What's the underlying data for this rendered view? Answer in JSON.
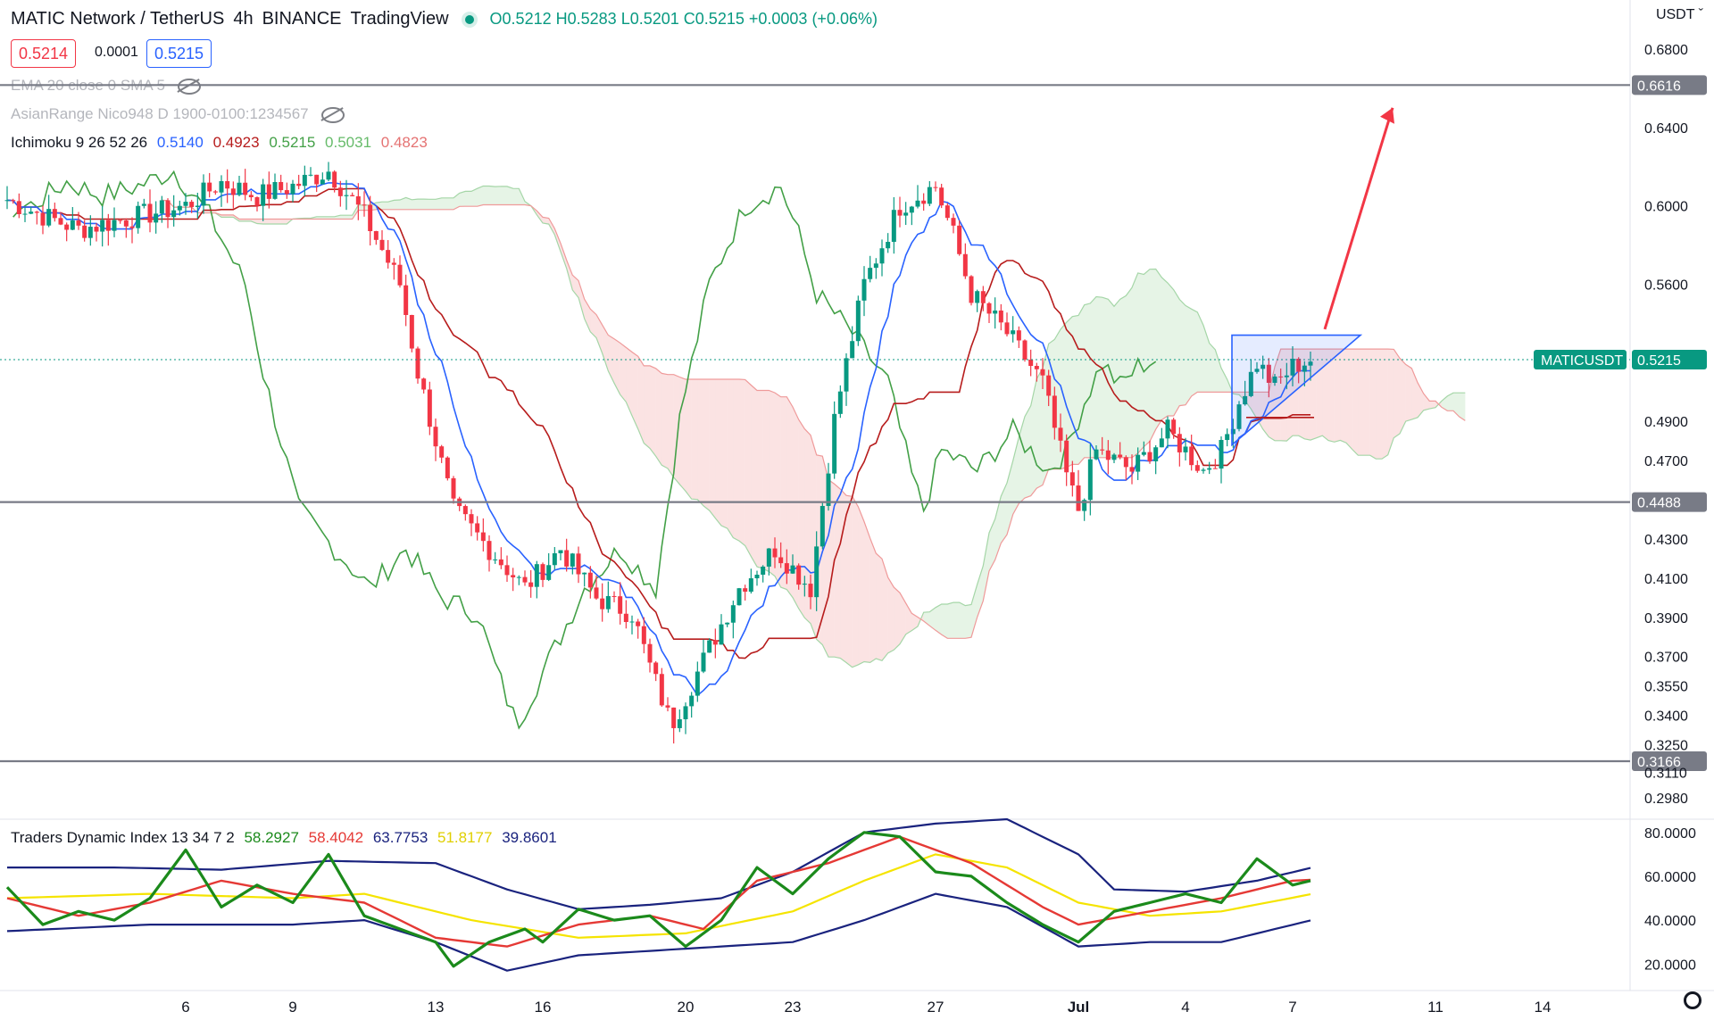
{
  "header": {
    "symbol": "MATIC Network / TetherUS",
    "interval": "4h",
    "exchange": "BINANCE",
    "source": "TradingView",
    "ohlc": {
      "open": "O0.5212",
      "high": "H0.5283",
      "low": "L0.5201",
      "close": "C0.5215",
      "change": "+0.0003 (+0.06%)"
    },
    "bid": "0.5214",
    "spread": "0.0001",
    "ask": "0.5215",
    "currency": "USDT"
  },
  "indicators": {
    "ema": "EMA 20 close 0 SMA 5",
    "asian": "AsianRange Nico948 D 1900-0100:1234567",
    "ichimoku": {
      "label": "Ichimoku 9 26 52 26",
      "v1": "0.5140",
      "v2": "0.4923",
      "v3": "0.5215",
      "v4": "0.5031",
      "v5": "0.4823"
    },
    "tdi": {
      "label": "Traders Dynamic Index 13 34 7 2",
      "v1": "58.2927",
      "v2": "58.4042",
      "v3": "63.7753",
      "v4": "51.8177",
      "v5": "39.8601"
    }
  },
  "colors": {
    "up": "#089981",
    "down": "#f23645",
    "tenkan": "#2962ff",
    "kijun": "#b71c1c",
    "chikou": "#43a047",
    "cloud_green": "#a5d6a7",
    "cloud_red": "#ef9a9a",
    "hline": "#787b86",
    "arrow": "#f23645",
    "tdi_green": "#1b8a1b",
    "tdi_red": "#e53935",
    "tdi_yellow": "#f5e400",
    "tdi_band": "#1a237e"
  },
  "chart_data": [
    {
      "type": "candlestick",
      "ylim": [
        0.287,
        0.705
      ],
      "y_ticks": [
        "0.6800",
        "0.6400",
        "0.6000",
        "0.5600",
        "0.4900",
        "0.4700",
        "0.4300",
        "0.4100",
        "0.3900",
        "0.3700",
        "0.3550",
        "0.3400",
        "0.3250",
        "0.3110",
        "0.2980"
      ],
      "x_ticks": [
        {
          "label": "6",
          "t": 5
        },
        {
          "label": "9",
          "t": 8
        },
        {
          "label": "13",
          "t": 12
        },
        {
          "label": "16",
          "t": 15
        },
        {
          "label": "20",
          "t": 19
        },
        {
          "label": "23",
          "t": 22
        },
        {
          "label": "27",
          "t": 26
        },
        {
          "label": "Jul",
          "t": 30
        },
        {
          "label": "4",
          "t": 33
        },
        {
          "label": "7",
          "t": 36
        },
        {
          "label": "11",
          "t": 40
        },
        {
          "label": "14",
          "t": 43
        }
      ],
      "h_levels": [
        {
          "value": 0.6616,
          "label": "0.6616"
        },
        {
          "value": 0.4488,
          "label": "0.4488"
        },
        {
          "value": 0.3166,
          "label": "0.3166"
        }
      ],
      "last_price": {
        "value": 0.5215,
        "label": "0.5215",
        "name": "MATICUSDT"
      },
      "close_keypoints": [
        [
          0,
          0.603
        ],
        [
          1,
          0.595
        ],
        [
          2,
          0.588
        ],
        [
          3,
          0.592
        ],
        [
          4,
          0.596
        ],
        [
          5,
          0.6
        ],
        [
          6,
          0.612
        ],
        [
          7,
          0.605
        ],
        [
          8,
          0.61
        ],
        [
          9,
          0.618
        ],
        [
          10,
          0.595
        ],
        [
          11,
          0.56
        ],
        [
          11.5,
          0.515
        ],
        [
          12.5,
          0.445
        ],
        [
          13.5,
          0.425
        ],
        [
          14.5,
          0.405
        ],
        [
          15.5,
          0.425
        ],
        [
          16.5,
          0.4
        ],
        [
          17.5,
          0.392
        ],
        [
          18,
          0.365
        ],
        [
          18.6,
          0.335
        ],
        [
          19.5,
          0.368
        ],
        [
          20.5,
          0.405
        ],
        [
          21.5,
          0.425
        ],
        [
          22.5,
          0.405
        ],
        [
          23.2,
          0.495
        ],
        [
          24,
          0.56
        ],
        [
          25,
          0.6
        ],
        [
          26,
          0.61
        ],
        [
          26.5,
          0.585
        ],
        [
          27,
          0.555
        ],
        [
          28,
          0.535
        ],
        [
          29,
          0.51
        ],
        [
          29.7,
          0.46
        ],
        [
          30,
          0.445
        ],
        [
          30.5,
          0.475
        ],
        [
          31.5,
          0.465
        ],
        [
          32.5,
          0.485
        ],
        [
          33.5,
          0.465
        ],
        [
          34,
          0.475
        ],
        [
          34.5,
          0.5
        ],
        [
          35,
          0.52
        ],
        [
          35.5,
          0.508
        ],
        [
          36,
          0.518
        ],
        [
          36.5,
          0.5215
        ]
      ]
    },
    {
      "type": "line",
      "name": "Traders Dynamic Index",
      "ylim": [
        12,
        86
      ],
      "y_ticks": [
        "80.0000",
        "60.0000",
        "40.0000",
        "20.0000"
      ],
      "series": [
        {
          "name": "rsi",
          "values": [
            [
              0,
              55
            ],
            [
              1,
              38
            ],
            [
              2,
              44
            ],
            [
              3,
              40
            ],
            [
              4,
              50
            ],
            [
              5,
              72
            ],
            [
              6,
              46
            ],
            [
              7,
              56
            ],
            [
              8,
              48
            ],
            [
              9,
              70
            ],
            [
              10,
              42
            ],
            [
              11,
              36
            ],
            [
              12,
              30
            ],
            [
              12.5,
              19
            ],
            [
              13.5,
              30
            ],
            [
              14.5,
              36
            ],
            [
              15,
              30
            ],
            [
              16,
              45
            ],
            [
              17,
              40
            ],
            [
              18,
              42
            ],
            [
              19,
              28
            ],
            [
              20,
              40
            ],
            [
              21,
              64
            ],
            [
              22,
              52
            ],
            [
              23,
              68
            ],
            [
              24,
              80
            ],
            [
              25,
              78
            ],
            [
              26,
              62
            ],
            [
              27,
              60
            ],
            [
              28,
              48
            ],
            [
              29,
              38
            ],
            [
              30,
              30
            ],
            [
              31,
              44
            ],
            [
              32,
              48
            ],
            [
              33,
              52
            ],
            [
              34,
              48
            ],
            [
              35,
              68
            ],
            [
              36,
              56
            ],
            [
              36.5,
              58
            ]
          ]
        },
        {
          "name": "signal",
          "values": [
            [
              0,
              50
            ],
            [
              2,
              42
            ],
            [
              4,
              48
            ],
            [
              6,
              58
            ],
            [
              8,
              52
            ],
            [
              10,
              48
            ],
            [
              12,
              32
            ],
            [
              14,
              28
            ],
            [
              16,
              38
            ],
            [
              18,
              42
            ],
            [
              19.5,
              36
            ],
            [
              21,
              58
            ],
            [
              23,
              66
            ],
            [
              25,
              78
            ],
            [
              27,
              66
            ],
            [
              29,
              46
            ],
            [
              30,
              38
            ],
            [
              32,
              44
            ],
            [
              34,
              50
            ],
            [
              36,
              58
            ],
            [
              36.5,
              58.4
            ]
          ]
        },
        {
          "name": "upper",
          "values": [
            [
              0,
              64
            ],
            [
              3,
              64
            ],
            [
              6,
              63
            ],
            [
              9,
              67
            ],
            [
              12,
              66
            ],
            [
              14,
              54
            ],
            [
              16,
              45
            ],
            [
              18,
              47
            ],
            [
              20,
              50
            ],
            [
              22,
              62
            ],
            [
              24,
              80
            ],
            [
              26,
              84
            ],
            [
              28,
              86
            ],
            [
              30,
              70
            ],
            [
              31,
              54
            ],
            [
              33,
              53
            ],
            [
              35,
              58
            ],
            [
              36.5,
              63.8
            ]
          ]
        },
        {
          "name": "middle",
          "values": [
            [
              0,
              50
            ],
            [
              4,
              52
            ],
            [
              8,
              50
            ],
            [
              10,
              52
            ],
            [
              13,
              40
            ],
            [
              16,
              32
            ],
            [
              19,
              34
            ],
            [
              22,
              44
            ],
            [
              24,
              58
            ],
            [
              26,
              70
            ],
            [
              28,
              64
            ],
            [
              30,
              48
            ],
            [
              32,
              42
            ],
            [
              34,
              44
            ],
            [
              36.5,
              51.8
            ]
          ]
        },
        {
          "name": "lower",
          "values": [
            [
              0,
              35
            ],
            [
              4,
              38
            ],
            [
              8,
              38
            ],
            [
              10,
              40
            ],
            [
              12,
              30
            ],
            [
              14,
              17
            ],
            [
              16,
              24
            ],
            [
              19,
              27
            ],
            [
              22,
              30
            ],
            [
              24,
              40
            ],
            [
              26,
              52
            ],
            [
              28,
              46
            ],
            [
              30,
              28
            ],
            [
              32,
              30
            ],
            [
              34,
              30
            ],
            [
              36.5,
              39.9
            ]
          ]
        }
      ]
    }
  ]
}
